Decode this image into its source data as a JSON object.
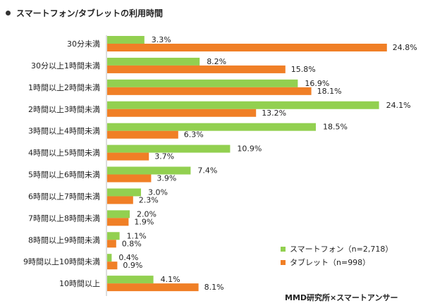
{
  "title": "スマートフォン/タブレットの利用時間",
  "source": "MMD研究所×スマートアンサー",
  "chart_data": {
    "type": "bar",
    "orientation": "horizontal",
    "title": "スマートフォン/タブレットの利用時間",
    "categories": [
      "30分未満",
      "30分以上1時間未満",
      "1時間以上2時間未満",
      "2時間以上3時間未満",
      "3時間以上4時間未満",
      "4時間以上5時間未満",
      "5時間以上6時間未満",
      "6時間以上7時間未満",
      "7時間以上8時間未満",
      "8時間以上9時間未満",
      "9時間以上10時間未満",
      "10時間以上"
    ],
    "series": [
      {
        "name": "スマートフォン（n=2,718）",
        "color": "#92d050",
        "values": [
          3.3,
          8.2,
          16.9,
          24.1,
          18.5,
          10.9,
          7.4,
          3.0,
          2.0,
          1.1,
          0.4,
          4.1
        ],
        "labels": [
          "3.3%",
          "8.2%",
          "16.9%",
          "24.1%",
          "18.5%",
          "10.9%",
          "7.4%",
          "3.0%",
          "2.0%",
          "1.1%",
          "0.4%",
          "4.1%"
        ]
      },
      {
        "name": "タブレット（n=998）",
        "color": "#f07f26",
        "values": [
          24.8,
          15.8,
          18.1,
          13.2,
          6.3,
          3.7,
          3.9,
          2.3,
          1.9,
          0.8,
          0.9,
          8.1
        ],
        "labels": [
          "24.8%",
          "15.8%",
          "18.1%",
          "13.2%",
          "6.3%",
          "3.7%",
          "3.9%",
          "2.3%",
          "1.9%",
          "0.8%",
          "0.9%",
          "8.1%"
        ]
      }
    ],
    "legend": "bottom-right",
    "grid": false
  }
}
